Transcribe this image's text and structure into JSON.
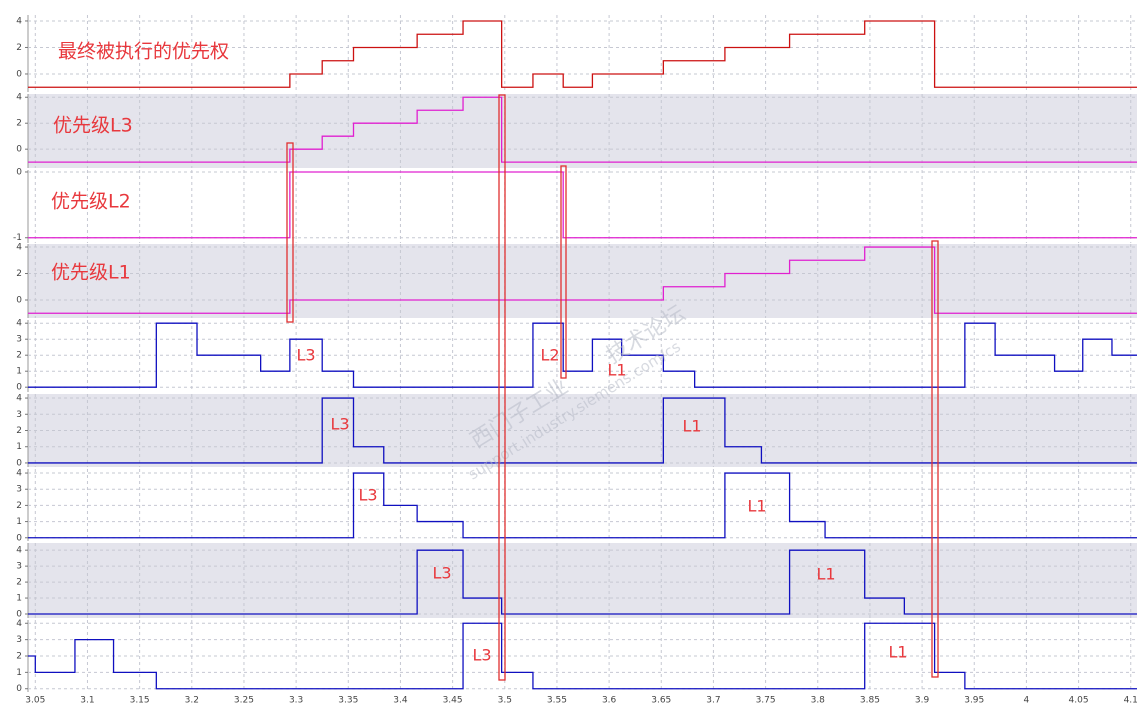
{
  "x_axis": {
    "xlim": [
      3.043,
      4.106
    ],
    "xticks": [
      3.05,
      3.1,
      3.15,
      3.2,
      3.25,
      3.3,
      3.35,
      3.4,
      3.45,
      3.5,
      3.55,
      3.6,
      3.65,
      3.7,
      3.75,
      3.8,
      3.85,
      3.9,
      3.95,
      4,
      4.05,
      4.1
    ]
  },
  "watermark": [
    "西门子工业",
    "support.industry.siemens.com/cs",
    "技术论坛"
  ],
  "chart_data": [
    {
      "type": "line",
      "step": true,
      "title": "最终被执行的优先权",
      "color": "#cc1111",
      "x": [
        3.043,
        3.294,
        3.325,
        3.355,
        3.416,
        3.46,
        3.497,
        3.527,
        3.556,
        3.584,
        3.652,
        3.711,
        3.773,
        3.845,
        3.912,
        4.106
      ],
      "values": [
        -1,
        0,
        1,
        2,
        3,
        4,
        -1,
        0,
        -1,
        0,
        1,
        2,
        3,
        4,
        -1,
        -1
      ],
      "ylim": [
        -1.36,
        4.45
      ],
      "yticks": [
        0,
        2,
        4
      ],
      "annotations": []
    },
    {
      "type": "line",
      "step": true,
      "title": "优先级L3",
      "color": "#e020d0",
      "x": [
        3.043,
        3.294,
        3.325,
        3.355,
        3.416,
        3.46,
        3.497,
        4.106
      ],
      "values": [
        -1,
        0,
        1,
        2,
        3,
        4,
        -1,
        -1
      ],
      "ylim": [
        -1.45,
        4.25
      ],
      "yticks": [
        0,
        2,
        4
      ],
      "annotations": []
    },
    {
      "type": "line",
      "step": true,
      "title": "优先级L2",
      "color": "#e020d0",
      "x": [
        3.043,
        3.294,
        3.556,
        4.106
      ],
      "values": [
        -1,
        0,
        -1,
        -1
      ],
      "ylim": [
        -1.08,
        0.03
      ],
      "yticks": [
        0,
        -1
      ],
      "annotations": []
    },
    {
      "type": "line",
      "step": true,
      "title": "优先级L1",
      "color": "#e020d0",
      "x": [
        3.043,
        3.294,
        3.652,
        3.711,
        3.773,
        3.845,
        3.912,
        4.106
      ],
      "values": [
        -1,
        0,
        1,
        2,
        3,
        4,
        -1,
        -1
      ],
      "ylim": [
        -1.36,
        4.23
      ],
      "yticks": [
        0,
        2,
        4
      ],
      "annotations": []
    },
    {
      "type": "line",
      "step": true,
      "color": "#1010c0",
      "x": [
        3.043,
        3.166,
        3.205,
        3.266,
        3.294,
        3.325,
        3.355,
        3.527,
        3.556,
        3.584,
        3.612,
        3.652,
        3.682,
        3.941,
        3.97,
        4.027,
        4.054,
        4.082,
        4.106
      ],
      "values": [
        0,
        4,
        2,
        1,
        3,
        1,
        0,
        4,
        1,
        3,
        2,
        1,
        0,
        4,
        2,
        1,
        3,
        2,
        2
      ],
      "ylim": [
        -0.3,
        4.2
      ],
      "yticks": [
        0,
        1,
        2,
        3,
        4
      ],
      "annotations": [
        "L3",
        "L2",
        "L1"
      ]
    },
    {
      "type": "line",
      "step": true,
      "color": "#1010c0",
      "x": [
        3.043,
        3.325,
        3.355,
        3.384,
        3.652,
        3.711,
        3.746,
        4.106
      ],
      "values": [
        0,
        4,
        1,
        0,
        4,
        1,
        0,
        0
      ],
      "ylim": [
        -0.25,
        4.25
      ],
      "yticks": [
        0,
        1,
        2,
        3,
        4
      ],
      "annotations": [
        "L3",
        "L1"
      ]
    },
    {
      "type": "line",
      "step": true,
      "color": "#1010c0",
      "x": [
        3.043,
        3.355,
        3.384,
        3.416,
        3.46,
        3.711,
        3.773,
        3.807,
        4.106
      ],
      "values": [
        0,
        4,
        2,
        1,
        0,
        4,
        1,
        0,
        0
      ],
      "ylim": [
        -0.2,
        4.25
      ],
      "yticks": [
        0,
        1,
        2,
        3,
        4
      ],
      "annotations": [
        "L3",
        "L1"
      ]
    },
    {
      "type": "line",
      "step": true,
      "color": "#1010c0",
      "x": [
        3.043,
        3.416,
        3.46,
        3.497,
        3.773,
        3.845,
        3.883,
        4.106
      ],
      "values": [
        0,
        4,
        1,
        0,
        4,
        1,
        0,
        0
      ],
      "ylim": [
        -0.25,
        4.45
      ],
      "yticks": [
        0,
        1,
        2,
        3,
        4
      ],
      "annotations": [
        "L3",
        "L1"
      ]
    },
    {
      "type": "line",
      "step": true,
      "color": "#1010c0",
      "x": [
        3.043,
        3.05,
        3.088,
        3.125,
        3.166,
        3.46,
        3.497,
        3.527,
        3.845,
        3.912,
        3.941,
        4.106
      ],
      "values": [
        2,
        1,
        3,
        1,
        0,
        4,
        1,
        0,
        4,
        1,
        0,
        0
      ],
      "ylim": [
        -0.2,
        4.2
      ],
      "yticks": [
        0,
        1,
        2,
        3,
        4
      ],
      "annotations": [
        "L3",
        "L1"
      ]
    }
  ]
}
